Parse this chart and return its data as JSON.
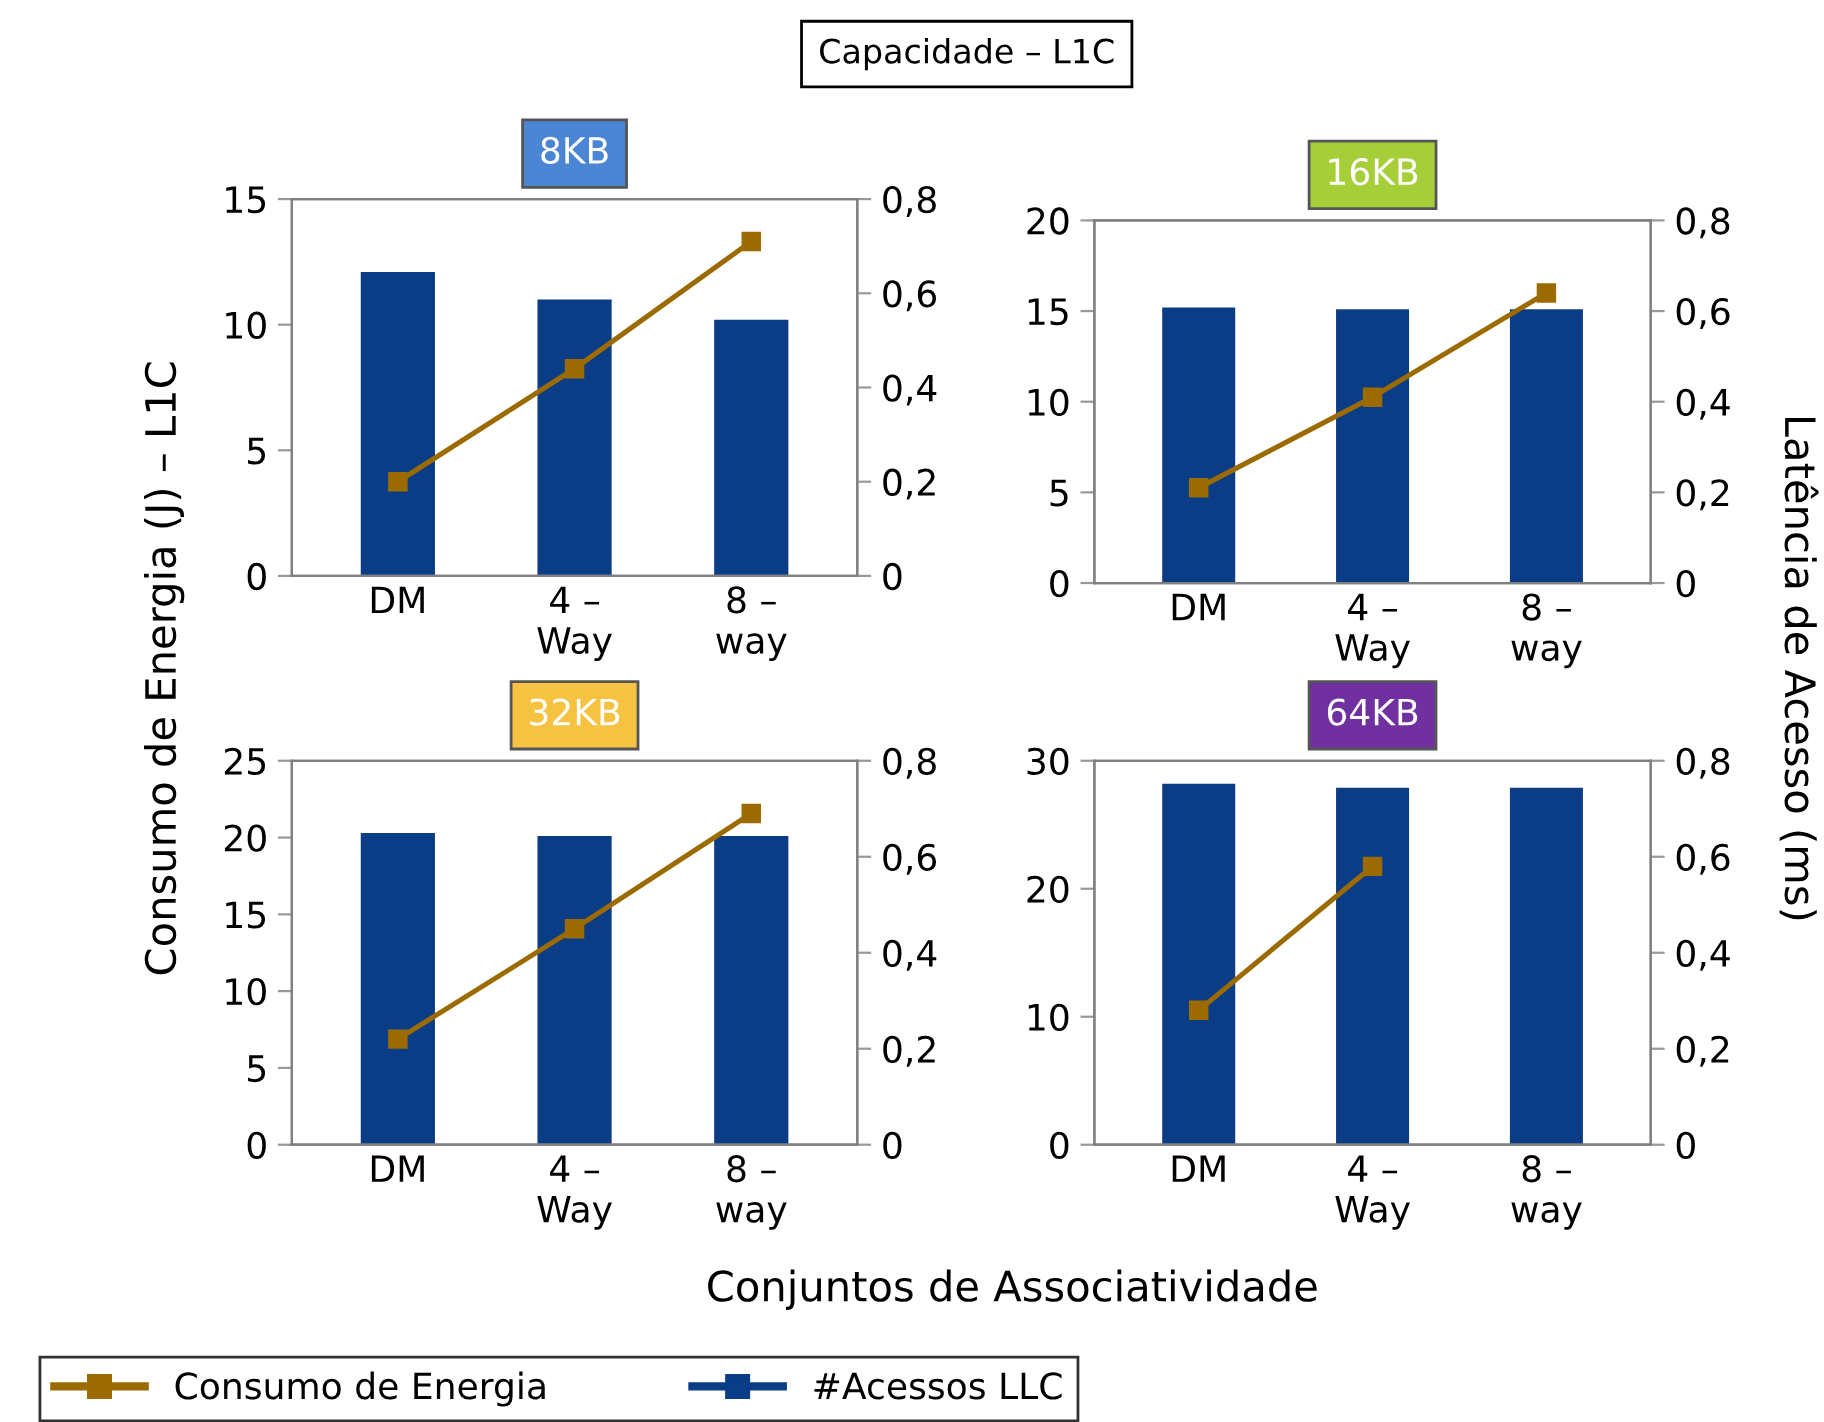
{
  "chart_data": [
    {
      "type": "bar",
      "title": "8KB",
      "annotations": [
        "Capacidade – L1C"
      ],
      "ylabel": "Consumo de Energia (J) – L1C",
      "legend": "bottom",
      "marker": "square",
      "grid": false,
      "categories": [
        "DM",
        "4 –\nWay",
        "8 –\nway"
      ],
      "series": [
        {
          "name": "#Acessos LLC",
          "color": "#0b3d87",
          "values": [
            12.1,
            11.0,
            10.2
          ]
        },
        {
          "type": "line",
          "axis": "y2",
          "name": "Consumo de Energia",
          "color": "#9c6b00",
          "values": [
            0.2,
            0.44,
            0.71
          ]
        }
      ],
      "ylim": [
        0,
        15
      ],
      "yticks": [
        0,
        5,
        10,
        15
      ],
      "y2lim": [
        0,
        0.8
      ],
      "y2ticks": [
        0,
        {
          "value": 0.2,
          "label": "0,2"
        },
        {
          "value": 0.4,
          "label": "0,4"
        },
        {
          "value": 0.6,
          "label": "0,6"
        },
        {
          "value": 0.8,
          "label": "0,8"
        }
      ]
    },
    {
      "type": "bar",
      "title": "16KB",
      "y2label": "Latência de Acesso (ms)",
      "marker": "square",
      "grid": false,
      "categories": [
        "DM",
        "4 –\nWay",
        "8 –\nway"
      ],
      "series": [
        {
          "name": "#Acessos LLC",
          "color": "#0b3d87",
          "values": [
            15.2,
            15.1,
            15.1
          ]
        },
        {
          "type": "line",
          "axis": "y2",
          "name": "Consumo de Energia",
          "color": "#9c6b00",
          "values": [
            0.21,
            0.41,
            0.64
          ]
        }
      ],
      "ylim": [
        0,
        20
      ],
      "yticks": [
        0,
        5,
        10,
        15,
        20
      ],
      "y2lim": [
        0,
        0.8
      ],
      "y2ticks": [
        0,
        {
          "value": 0.2,
          "label": "0,2"
        },
        {
          "value": 0.4,
          "label": "0,4"
        },
        {
          "value": 0.6,
          "label": "0,6"
        },
        {
          "value": 0.8,
          "label": "0,8"
        }
      ]
    },
    {
      "type": "bar",
      "title": "32KB",
      "xlabel": "Conjuntos de Associatividade",
      "marker": "square",
      "grid": false,
      "categories": [
        "DM",
        "4 –\nWay",
        "8 –\nway"
      ],
      "series": [
        {
          "name": "#Acessos LLC",
          "color": "#0b3d87",
          "values": [
            20.3,
            20.1,
            20.1
          ]
        },
        {
          "type": "line",
          "axis": "y2",
          "name": "Consumo de Energia",
          "color": "#9c6b00",
          "values": [
            0.22,
            0.45,
            0.69
          ]
        }
      ],
      "ylim": [
        0,
        25
      ],
      "yticks": [
        0,
        5,
        10,
        15,
        20,
        25
      ],
      "y2lim": [
        0,
        0.8
      ],
      "y2ticks": [
        0,
        {
          "value": 0.2,
          "label": "0,2"
        },
        {
          "value": 0.4,
          "label": "0,4"
        },
        {
          "value": 0.6,
          "label": "0,6"
        },
        {
          "value": 0.8,
          "label": "0,8"
        }
      ]
    },
    {
      "type": "bar",
      "title": "64KB",
      "marker": "square",
      "grid": false,
      "categories": [
        "DM",
        "4 –\nWay",
        "8 –\nway"
      ],
      "series": [
        {
          "name": "#Acessos LLC",
          "color": "#0b3d87",
          "values": [
            28.2,
            27.9,
            27.9
          ]
        },
        {
          "type": "line",
          "axis": "y2",
          "name": "Consumo de Energia",
          "color": "#9c6b00",
          "values": [
            0.28,
            0.58,
            null
          ]
        }
      ],
      "ylim": [
        0,
        30
      ],
      "yticks": [
        0,
        10,
        20,
        30
      ],
      "y2lim": [
        0,
        0.8
      ],
      "y2ticks": [
        0,
        {
          "value": 0.2,
          "label": "0,2"
        },
        {
          "value": 0.4,
          "label": "0,4"
        },
        {
          "value": 0.6,
          "label": "0,6"
        },
        {
          "value": 0.8,
          "label": "0,8"
        }
      ]
    }
  ]
}
